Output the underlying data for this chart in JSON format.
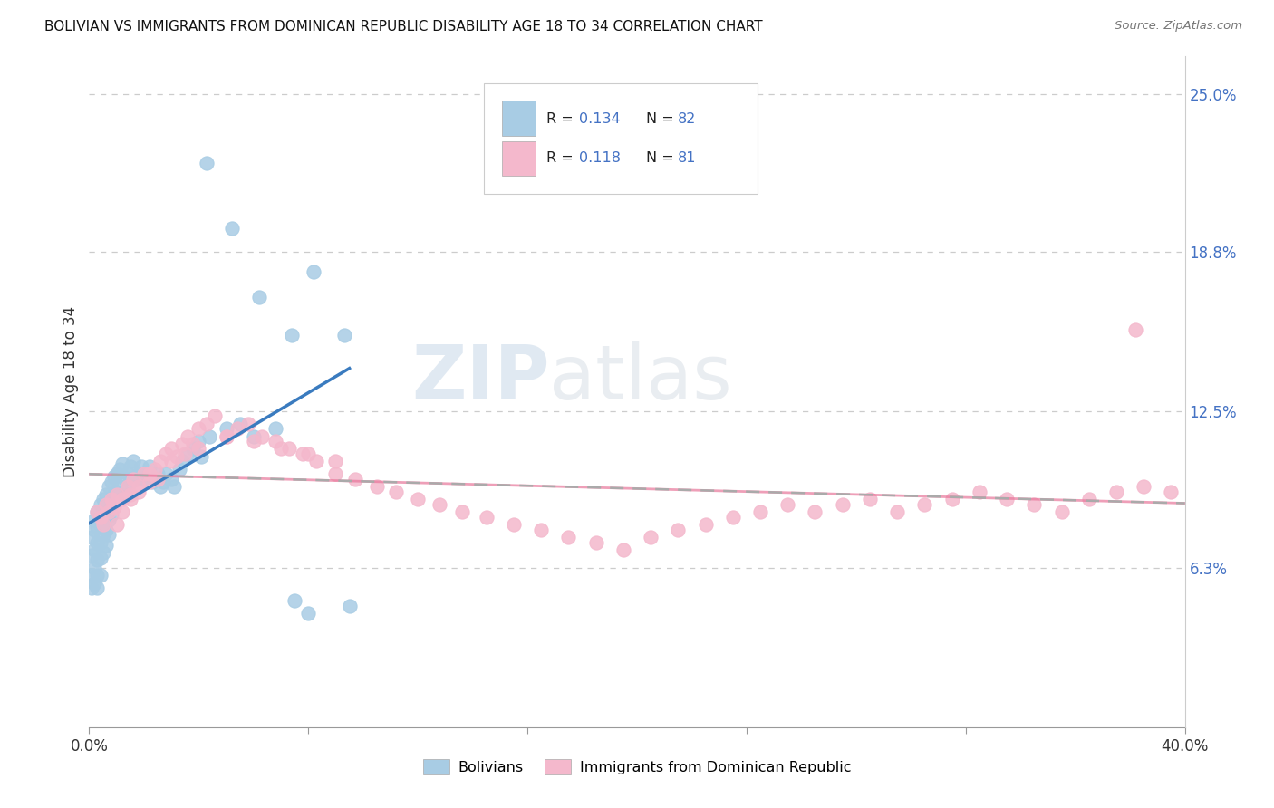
{
  "title": "BOLIVIAN VS IMMIGRANTS FROM DOMINICAN REPUBLIC DISABILITY AGE 18 TO 34 CORRELATION CHART",
  "source": "Source: ZipAtlas.com",
  "ylabel": "Disability Age 18 to 34",
  "right_yticks": [
    "6.3%",
    "12.5%",
    "18.8%",
    "25.0%"
  ],
  "right_ytick_vals": [
    0.063,
    0.125,
    0.188,
    0.25
  ],
  "legend_r1": "R = 0.134",
  "legend_n1": "N = 82",
  "legend_r2": "R = 0.118",
  "legend_n2": "N = 81",
  "legend_label1": "Bolivians",
  "legend_label2": "Immigrants from Dominican Republic",
  "color_blue": "#a8cce4",
  "color_pink": "#f4b8cc",
  "color_blue_line": "#3a7bbf",
  "color_pink_line": "#e8769a",
  "watermark_zip": "ZIP",
  "watermark_atlas": "atlas",
  "xlim": [
    0.0,
    0.4
  ],
  "ylim": [
    0.0,
    0.265
  ],
  "xticks": [
    0.0,
    0.08,
    0.16,
    0.24,
    0.32,
    0.4
  ],
  "xticklabels": [
    "0.0%",
    "",
    "",
    "",
    "",
    "40.0%"
  ]
}
